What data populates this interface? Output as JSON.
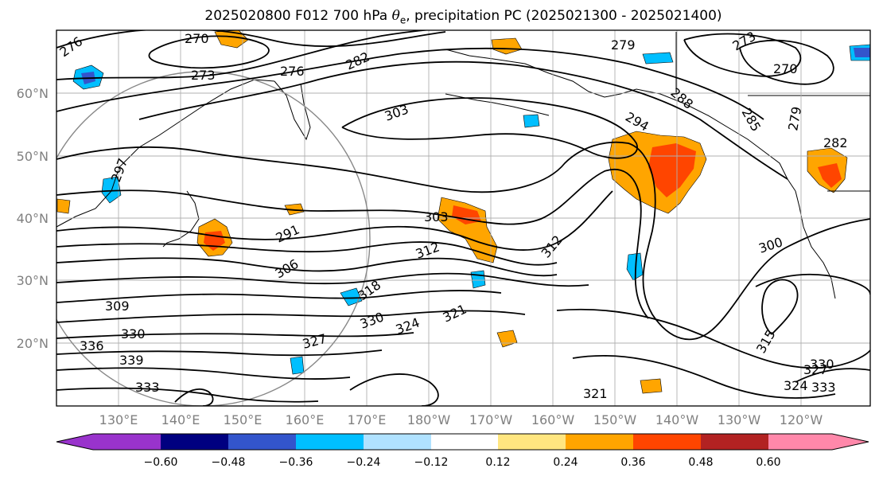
{
  "title": {
    "prefix": "2025020800 F012 700 hPa ",
    "theta_symbol": "θ",
    "theta_subscript": "e",
    "suffix": ", precipitation PC (2025021300 - 2025021400)"
  },
  "map": {
    "lon_ticks": [
      "130°E",
      "140°E",
      "150°E",
      "160°E",
      "170°E",
      "180°W",
      "170°W",
      "160°W",
      "150°W",
      "140°W",
      "130°W",
      "120°W"
    ],
    "lat_ticks": [
      "60°N",
      "50°N",
      "40°N",
      "30°N",
      "20°N"
    ],
    "contour_labels": [
      "276",
      "270",
      "273",
      "276",
      "282",
      "279",
      "273",
      "270",
      "303",
      "294",
      "288",
      "285",
      "279",
      "282",
      "303",
      "291",
      "312",
      "300",
      "306",
      "309",
      "318",
      "330",
      "324",
      "321",
      "336",
      "339",
      "330",
      "327",
      "333",
      "315",
      "321",
      "324",
      "327",
      "330",
      "333",
      "312",
      "297"
    ],
    "colors": {
      "land_outline": "#000000",
      "contour": "#000000",
      "graticule": "#b0b0b0",
      "tick_label": "#808080"
    }
  },
  "colorbar": {
    "tick_labels": [
      "−0.60",
      "−0.48",
      "−0.36",
      "−0.24",
      "−0.12",
      "0.12",
      "0.24",
      "0.36",
      "0.48",
      "0.60"
    ],
    "colors": [
      "#9933cc",
      "#000080",
      "#3355cc",
      "#00bfff",
      "#b0e2ff",
      "#ffffff",
      "#ffe680",
      "#ffa500",
      "#ff4500",
      "#b22222",
      "#ff88aa"
    ]
  }
}
